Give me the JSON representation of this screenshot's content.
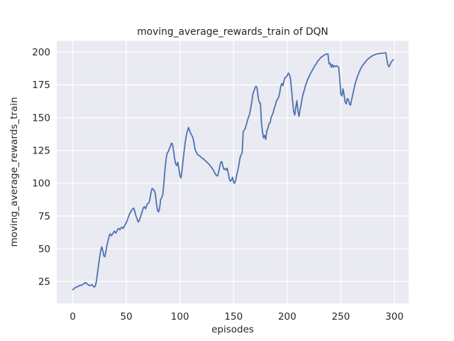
{
  "colors": {
    "figure_bg": "#ffffff",
    "plot_bg": "#EAEAF2",
    "grid": "#FFFFFF",
    "line": "#4C72B0",
    "text": "#262626"
  },
  "chart_data": {
    "type": "line",
    "title": "moving_average_rewards_train of DQN",
    "xlabel": "episodes",
    "ylabel": "moving_average_rewards_train",
    "legend": "none",
    "grid": true,
    "x_ticks": [
      0,
      50,
      100,
      150,
      200,
      250,
      300
    ],
    "y_ticks": [
      25,
      50,
      75,
      100,
      125,
      150,
      175,
      200
    ],
    "xlim": [
      -14.9,
      313.2
    ],
    "ylim": [
      8.3,
      208.5
    ],
    "x_start": 0,
    "x_step": 1,
    "values": [
      18.8,
      19.4,
      20.2,
      20.6,
      21.0,
      21.3,
      21.8,
      22.3,
      22.0,
      22.6,
      23.2,
      23.7,
      24.3,
      23.6,
      22.9,
      22.3,
      21.9,
      22.4,
      22.7,
      21.6,
      20.8,
      21.5,
      25.0,
      31.0,
      37.0,
      43.0,
      48.0,
      51.5,
      49.0,
      44.5,
      44.0,
      48.5,
      53.0,
      56.5,
      60.0,
      61.5,
      60.0,
      61.0,
      62.5,
      63.5,
      62.0,
      63.0,
      65.0,
      65.5,
      64.5,
      66.0,
      66.5,
      65.5,
      67.0,
      68.5,
      70.0,
      72.0,
      74.5,
      76.5,
      78.0,
      79.5,
      80.5,
      81.0,
      78.0,
      75.0,
      73.0,
      70.5,
      71.5,
      74.0,
      76.5,
      79.0,
      81.5,
      82.0,
      80.5,
      83.0,
      84.5,
      85.0,
      88.0,
      93.0,
      96.0,
      95.5,
      94.5,
      92.0,
      85.0,
      79.5,
      78.0,
      81.0,
      87.5,
      89.0,
      91.5,
      100.0,
      110.0,
      118.0,
      123.0,
      124.0,
      126.0,
      128.0,
      130.5,
      130.0,
      125.0,
      119.0,
      114.5,
      113.5,
      116.0,
      111.0,
      105.5,
      104.0,
      110.0,
      118.0,
      125.0,
      132.0,
      137.0,
      140.0,
      142.5,
      140.0,
      138.0,
      136.5,
      135.0,
      131.0,
      126.0,
      124.0,
      122.5,
      121.5,
      121.0,
      120.5,
      119.5,
      119.0,
      118.5,
      117.5,
      117.0,
      116.0,
      115.5,
      114.5,
      113.5,
      112.5,
      111.5,
      110.0,
      108.5,
      107.0,
      106.0,
      105.5,
      108.0,
      112.5,
      116.0,
      116.5,
      113.0,
      110.5,
      111.0,
      110.0,
      111.5,
      108.0,
      103.5,
      101.5,
      102.5,
      104.5,
      100.5,
      100.0,
      102.5,
      106.5,
      110.0,
      114.0,
      119.5,
      121.5,
      123.5,
      139.5,
      140.5,
      142.0,
      145.0,
      148.0,
      150.5,
      153.0,
      157.5,
      162.0,
      168.0,
      170.5,
      172.5,
      174.0,
      172.0,
      165.0,
      161.5,
      161.0,
      146.0,
      139.0,
      134.5,
      136.5,
      133.5,
      140.0,
      142.0,
      145.5,
      146.0,
      150.0,
      152.0,
      154.0,
      157.5,
      159.5,
      163.0,
      164.0,
      165.5,
      169.0,
      174.0,
      176.0,
      174.5,
      178.0,
      180.5,
      181.0,
      182.0,
      184.0,
      183.0,
      180.0,
      172.0,
      163.0,
      155.0,
      152.0,
      158.0,
      163.0,
      155.0,
      151.0,
      156.0,
      160.0,
      165.0,
      168.5,
      171.0,
      174.5,
      176.5,
      179.0,
      180.5,
      182.5,
      184.0,
      185.5,
      187.0,
      188.5,
      190.0,
      191.0,
      192.5,
      193.5,
      194.5,
      195.5,
      196.2,
      196.8,
      197.4,
      197.9,
      198.3,
      198.5,
      198.6,
      191.0,
      191.5,
      188.5,
      190.5,
      188.5,
      189.5,
      189.0,
      189.5,
      189.0,
      188.5,
      180.0,
      168.0,
      166.5,
      172.0,
      167.5,
      162.0,
      160.5,
      164.5,
      164.0,
      160.5,
      159.5,
      163.5,
      167.0,
      171.0,
      174.5,
      177.5,
      180.0,
      182.5,
      184.5,
      186.5,
      188.0,
      189.5,
      190.5,
      191.5,
      192.5,
      193.5,
      194.5,
      195.2,
      195.8,
      196.4,
      197.0,
      197.4,
      197.8,
      198.1,
      198.4,
      198.6,
      198.8,
      198.9,
      199.0,
      199.1,
      199.2,
      199.3,
      199.4,
      199.4,
      194.0,
      190.0,
      188.8,
      190.5,
      192.3,
      193.5,
      194.2
    ]
  }
}
